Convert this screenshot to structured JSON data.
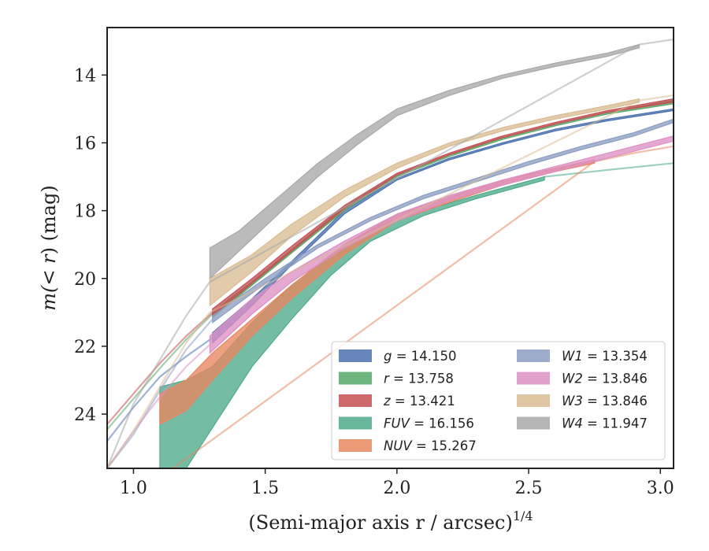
{
  "chart_data": {
    "type": "line",
    "xlabel": "(Semi-major axis r / arcsec)",
    "xlabel_superscript": "1/4",
    "ylabel_prefix": "m(",
    "ylabel_italic": "< r",
    "ylabel_suffix": ") (mag)",
    "xlim": [
      0.9,
      3.05
    ],
    "ylim": [
      25.6,
      12.6
    ],
    "y_inverted": true,
    "x_ticks": [
      "1.0",
      "1.5",
      "2.0",
      "2.5",
      "3.0"
    ],
    "y_ticks": [
      "14",
      "16",
      "18",
      "20",
      "22",
      "24"
    ],
    "grid": false,
    "legend_placement": "lower-right",
    "series": [
      {
        "name": "g = 14.150",
        "color": "#4C72B0",
        "band_x": [
          1.3,
          1.45,
          1.6,
          1.8,
          2.0,
          2.2,
          2.4,
          2.6,
          2.8,
          3.05
        ],
        "band_upper": [
          21.6,
          20.6,
          19.5,
          18.0,
          17.05,
          16.45,
          16.0,
          15.6,
          15.3,
          15.0
        ],
        "band_lower": [
          21.9,
          20.8,
          19.6,
          18.1,
          17.1,
          16.5,
          16.05,
          15.65,
          15.35,
          15.05
        ],
        "line_x": [
          0.9,
          1.0,
          1.1,
          1.2,
          1.3
        ],
        "line_y": [
          24.8,
          23.8,
          22.9,
          22.3,
          21.75
        ]
      },
      {
        "name": "r = 13.758",
        "color": "#55A868",
        "band_x": [
          1.3,
          1.45,
          1.6,
          1.8,
          2.0,
          2.2,
          2.4,
          2.6,
          2.8,
          3.05
        ],
        "band_upper": [
          21.0,
          20.1,
          19.15,
          17.9,
          16.95,
          16.35,
          15.85,
          15.45,
          15.1,
          14.75
        ],
        "band_lower": [
          21.15,
          20.2,
          19.25,
          18.0,
          17.0,
          16.4,
          15.9,
          15.5,
          15.15,
          14.85
        ],
        "line_x": [
          0.9,
          1.0,
          1.1,
          1.2,
          1.3
        ],
        "line_y": [
          24.45,
          23.55,
          22.65,
          21.8,
          21.05
        ]
      },
      {
        "name": "z = 13.421",
        "color": "#C44E52",
        "band_x": [
          1.3,
          1.45,
          1.6,
          1.8,
          2.0,
          2.2,
          2.4,
          2.6,
          2.8,
          3.05
        ],
        "band_upper": [
          20.9,
          20.0,
          19.05,
          17.85,
          16.9,
          16.3,
          15.8,
          15.4,
          15.05,
          14.7
        ],
        "band_lower": [
          21.1,
          20.15,
          19.2,
          17.95,
          16.95,
          16.35,
          15.85,
          15.45,
          15.1,
          14.8
        ],
        "line_x": [
          0.9,
          1.0,
          1.1,
          1.2,
          1.3
        ],
        "line_y": [
          24.3,
          23.4,
          22.5,
          21.7,
          21.0
        ]
      },
      {
        "name": "FUV = 16.156",
        "color": "#4DAA8A",
        "band_x": [
          1.1,
          1.2,
          1.3,
          1.45,
          1.6,
          1.75,
          1.9,
          2.1,
          2.3,
          2.56
        ],
        "band_upper": [
          23.2,
          23.0,
          22.6,
          21.3,
          20.2,
          19.3,
          18.55,
          18.0,
          17.55,
          17.0
        ],
        "band_lower": [
          25.6,
          25.6,
          24.4,
          22.6,
          21.2,
          19.9,
          18.9,
          18.15,
          17.65,
          17.1
        ],
        "line_x": [
          2.56,
          2.8,
          3.05
        ],
        "line_y": [
          17.0,
          16.8,
          16.6
        ]
      },
      {
        "name": "NUV = 15.267",
        "color": "#E8875F",
        "band_x": [
          1.1,
          1.2,
          1.3,
          1.45,
          1.6,
          1.8,
          2.0,
          2.2,
          2.4,
          2.6,
          2.75
        ],
        "band_upper": [
          23.4,
          23.0,
          22.2,
          21.2,
          20.2,
          19.0,
          18.1,
          17.6,
          17.1,
          16.75,
          16.5
        ],
        "band_lower": [
          24.3,
          23.9,
          23.0,
          21.7,
          20.6,
          19.3,
          18.3,
          17.75,
          17.25,
          16.85,
          16.6
        ],
        "line_x": [
          1.1,
          1.15,
          2.75,
          2.9,
          3.05
        ],
        "line_y": [
          25.6,
          25.6,
          16.55,
          16.3,
          16.1
        ]
      },
      {
        "name": "W1 = 13.354",
        "color": "#8C9DC2",
        "band_x": [
          1.3,
          1.5,
          1.7,
          1.9,
          2.1,
          2.3,
          2.5,
          2.7,
          2.9,
          3.05
        ],
        "band_upper": [
          21.1,
          20.0,
          19.0,
          18.2,
          17.55,
          17.05,
          16.55,
          16.1,
          15.7,
          15.3
        ],
        "band_lower": [
          21.3,
          20.15,
          19.1,
          18.3,
          17.65,
          17.15,
          16.65,
          16.2,
          15.8,
          15.4
        ],
        "line_x": [
          0.9,
          1.0,
          1.1,
          1.2,
          1.3
        ],
        "line_y": [
          25.6,
          24.6,
          23.3,
          22.1,
          21.2
        ]
      },
      {
        "name": "W2 = 13.846",
        "color": "#DD8FC4",
        "band_x": [
          1.29,
          1.45,
          1.6,
          1.8,
          2.0,
          2.2,
          2.4,
          2.6,
          2.8,
          3.05
        ],
        "band_upper": [
          21.7,
          20.6,
          19.8,
          18.9,
          18.1,
          17.55,
          17.1,
          16.7,
          16.3,
          15.8
        ],
        "band_lower": [
          22.2,
          21.05,
          20.1,
          19.1,
          18.3,
          17.7,
          17.25,
          16.85,
          16.45,
          15.95
        ],
        "line_x": [
          0.9,
          1.0,
          1.1,
          1.2,
          1.29
        ],
        "line_y": [
          25.6,
          24.5,
          23.5,
          22.6,
          21.95
        ]
      },
      {
        "name": "W3 = 13.846",
        "color": "#D9BC93",
        "band_x": [
          1.29,
          1.45,
          1.6,
          1.8,
          2.0,
          2.2,
          2.4,
          2.6,
          2.8,
          2.92
        ],
        "band_upper": [
          20.0,
          19.3,
          18.4,
          17.4,
          16.6,
          16.0,
          15.55,
          15.2,
          14.9,
          14.7
        ],
        "band_lower": [
          20.8,
          19.8,
          18.75,
          17.6,
          16.75,
          16.1,
          15.65,
          15.3,
          15.0,
          14.8
        ],
        "line_x": [
          0.9,
          1.0,
          1.1,
          1.2,
          1.29,
          2.92,
          3.05
        ],
        "line_y": [
          25.6,
          24.5,
          23.2,
          21.9,
          21.0,
          14.75,
          14.6
        ]
      },
      {
        "name": "W4 = 11.947",
        "color": "#A8A8A8",
        "band_x": [
          1.29,
          1.4,
          1.55,
          1.7,
          1.85,
          2.0,
          2.2,
          2.4,
          2.6,
          2.8,
          2.92
        ],
        "band_upper": [
          19.1,
          18.6,
          17.6,
          16.6,
          15.75,
          15.0,
          14.45,
          14.0,
          13.65,
          13.35,
          13.1
        ],
        "band_lower": [
          20.0,
          19.2,
          18.1,
          17.0,
          16.05,
          15.2,
          14.6,
          14.1,
          13.75,
          13.45,
          13.2
        ],
        "line_x": [
          0.9,
          1.0,
          1.1,
          1.2,
          1.29,
          2.92,
          3.05
        ],
        "line_y": [
          25.6,
          23.7,
          22.4,
          21.1,
          20.1,
          13.1,
          12.95
        ]
      }
    ]
  }
}
